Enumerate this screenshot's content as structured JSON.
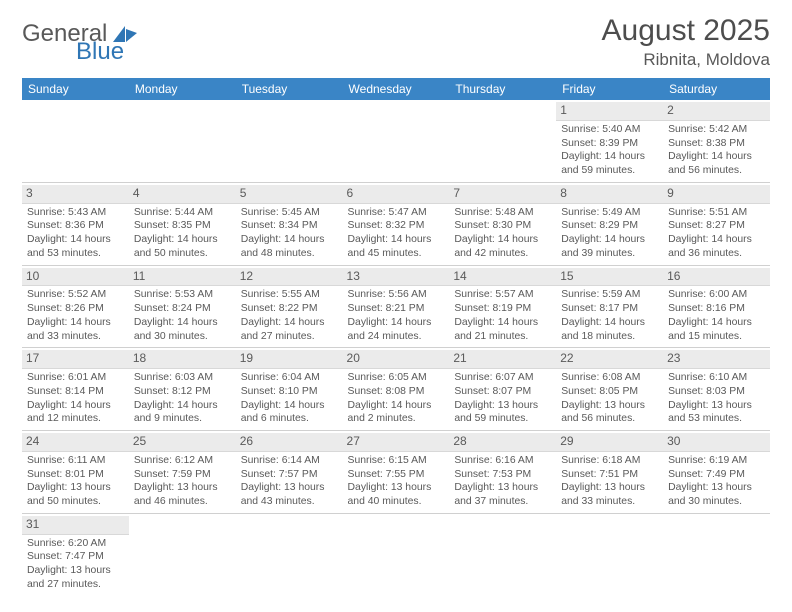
{
  "logo": {
    "text1": "General",
    "text2": "Blue"
  },
  "title": "August 2025",
  "location": "Ribnita, Moldova",
  "colors": {
    "header_bg": "#3a85c6",
    "header_fg": "#ffffff",
    "daybar_bg": "#ebebeb",
    "text": "#595959",
    "accent": "#2f76b5"
  },
  "weekdays": [
    "Sunday",
    "Monday",
    "Tuesday",
    "Wednesday",
    "Thursday",
    "Friday",
    "Saturday"
  ],
  "weeks": [
    [
      null,
      null,
      null,
      null,
      null,
      {
        "d": "1",
        "sr": "5:40 AM",
        "ss": "8:39 PM",
        "dl": "14 hours and 59 minutes."
      },
      {
        "d": "2",
        "sr": "5:42 AM",
        "ss": "8:38 PM",
        "dl": "14 hours and 56 minutes."
      }
    ],
    [
      {
        "d": "3",
        "sr": "5:43 AM",
        "ss": "8:36 PM",
        "dl": "14 hours and 53 minutes."
      },
      {
        "d": "4",
        "sr": "5:44 AM",
        "ss": "8:35 PM",
        "dl": "14 hours and 50 minutes."
      },
      {
        "d": "5",
        "sr": "5:45 AM",
        "ss": "8:34 PM",
        "dl": "14 hours and 48 minutes."
      },
      {
        "d": "6",
        "sr": "5:47 AM",
        "ss": "8:32 PM",
        "dl": "14 hours and 45 minutes."
      },
      {
        "d": "7",
        "sr": "5:48 AM",
        "ss": "8:30 PM",
        "dl": "14 hours and 42 minutes."
      },
      {
        "d": "8",
        "sr": "5:49 AM",
        "ss": "8:29 PM",
        "dl": "14 hours and 39 minutes."
      },
      {
        "d": "9",
        "sr": "5:51 AM",
        "ss": "8:27 PM",
        "dl": "14 hours and 36 minutes."
      }
    ],
    [
      {
        "d": "10",
        "sr": "5:52 AM",
        "ss": "8:26 PM",
        "dl": "14 hours and 33 minutes."
      },
      {
        "d": "11",
        "sr": "5:53 AM",
        "ss": "8:24 PM",
        "dl": "14 hours and 30 minutes."
      },
      {
        "d": "12",
        "sr": "5:55 AM",
        "ss": "8:22 PM",
        "dl": "14 hours and 27 minutes."
      },
      {
        "d": "13",
        "sr": "5:56 AM",
        "ss": "8:21 PM",
        "dl": "14 hours and 24 minutes."
      },
      {
        "d": "14",
        "sr": "5:57 AM",
        "ss": "8:19 PM",
        "dl": "14 hours and 21 minutes."
      },
      {
        "d": "15",
        "sr": "5:59 AM",
        "ss": "8:17 PM",
        "dl": "14 hours and 18 minutes."
      },
      {
        "d": "16",
        "sr": "6:00 AM",
        "ss": "8:16 PM",
        "dl": "14 hours and 15 minutes."
      }
    ],
    [
      {
        "d": "17",
        "sr": "6:01 AM",
        "ss": "8:14 PM",
        "dl": "14 hours and 12 minutes."
      },
      {
        "d": "18",
        "sr": "6:03 AM",
        "ss": "8:12 PM",
        "dl": "14 hours and 9 minutes."
      },
      {
        "d": "19",
        "sr": "6:04 AM",
        "ss": "8:10 PM",
        "dl": "14 hours and 6 minutes."
      },
      {
        "d": "20",
        "sr": "6:05 AM",
        "ss": "8:08 PM",
        "dl": "14 hours and 2 minutes."
      },
      {
        "d": "21",
        "sr": "6:07 AM",
        "ss": "8:07 PM",
        "dl": "13 hours and 59 minutes."
      },
      {
        "d": "22",
        "sr": "6:08 AM",
        "ss": "8:05 PM",
        "dl": "13 hours and 56 minutes."
      },
      {
        "d": "23",
        "sr": "6:10 AM",
        "ss": "8:03 PM",
        "dl": "13 hours and 53 minutes."
      }
    ],
    [
      {
        "d": "24",
        "sr": "6:11 AM",
        "ss": "8:01 PM",
        "dl": "13 hours and 50 minutes."
      },
      {
        "d": "25",
        "sr": "6:12 AM",
        "ss": "7:59 PM",
        "dl": "13 hours and 46 minutes."
      },
      {
        "d": "26",
        "sr": "6:14 AM",
        "ss": "7:57 PM",
        "dl": "13 hours and 43 minutes."
      },
      {
        "d": "27",
        "sr": "6:15 AM",
        "ss": "7:55 PM",
        "dl": "13 hours and 40 minutes."
      },
      {
        "d": "28",
        "sr": "6:16 AM",
        "ss": "7:53 PM",
        "dl": "13 hours and 37 minutes."
      },
      {
        "d": "29",
        "sr": "6:18 AM",
        "ss": "7:51 PM",
        "dl": "13 hours and 33 minutes."
      },
      {
        "d": "30",
        "sr": "6:19 AM",
        "ss": "7:49 PM",
        "dl": "13 hours and 30 minutes."
      }
    ],
    [
      {
        "d": "31",
        "sr": "6:20 AM",
        "ss": "7:47 PM",
        "dl": "13 hours and 27 minutes."
      },
      null,
      null,
      null,
      null,
      null,
      null
    ]
  ],
  "labels": {
    "sunrise": "Sunrise:",
    "sunset": "Sunset:",
    "daylight": "Daylight:"
  }
}
